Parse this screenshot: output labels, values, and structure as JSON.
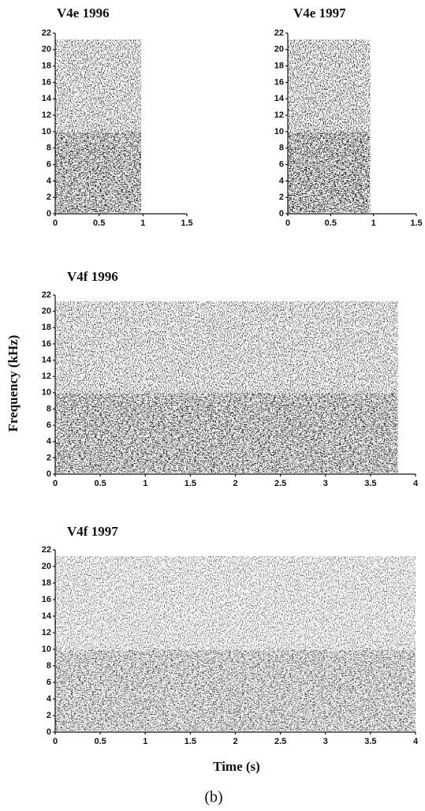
{
  "chart_data": [
    {
      "type": "spectrogram",
      "title": "V4e 1996",
      "xlim": [
        0,
        1.5
      ],
      "xticks": [
        0,
        0.5,
        1,
        1.5
      ],
      "ylim": [
        0,
        22
      ],
      "yticks": [
        0,
        2,
        4,
        6,
        8,
        10,
        12,
        14,
        16,
        18,
        20,
        22
      ]
    },
    {
      "type": "spectrogram",
      "title": "V4e 1997",
      "xlim": [
        0,
        1.5
      ],
      "xticks": [
        0,
        0.5,
        1,
        1.5
      ],
      "ylim": [
        0,
        22
      ],
      "yticks": [
        0,
        2,
        4,
        6,
        8,
        10,
        12,
        14,
        16,
        18,
        20,
        22
      ]
    },
    {
      "type": "spectrogram",
      "title": "V4f 1996",
      "xlim": [
        0,
        4
      ],
      "xticks": [
        0,
        0.5,
        1,
        1.5,
        2,
        2.5,
        3,
        3.5,
        4
      ],
      "ylim": [
        0,
        22
      ],
      "yticks": [
        0,
        2,
        4,
        6,
        8,
        10,
        12,
        14,
        16,
        18,
        20,
        22
      ]
    },
    {
      "type": "spectrogram",
      "title": "V4f 1997",
      "xlim": [
        0,
        4
      ],
      "xticks": [
        0,
        0.5,
        1,
        1.5,
        2,
        2.5,
        3,
        3.5,
        4
      ],
      "ylim": [
        0,
        22
      ],
      "yticks": [
        0,
        2,
        4,
        6,
        8,
        10,
        12,
        14,
        16,
        18,
        20,
        22
      ]
    }
  ],
  "ylabel": "Frequency (kHz)",
  "xlabel": "Time (s)",
  "caption": "(b)"
}
